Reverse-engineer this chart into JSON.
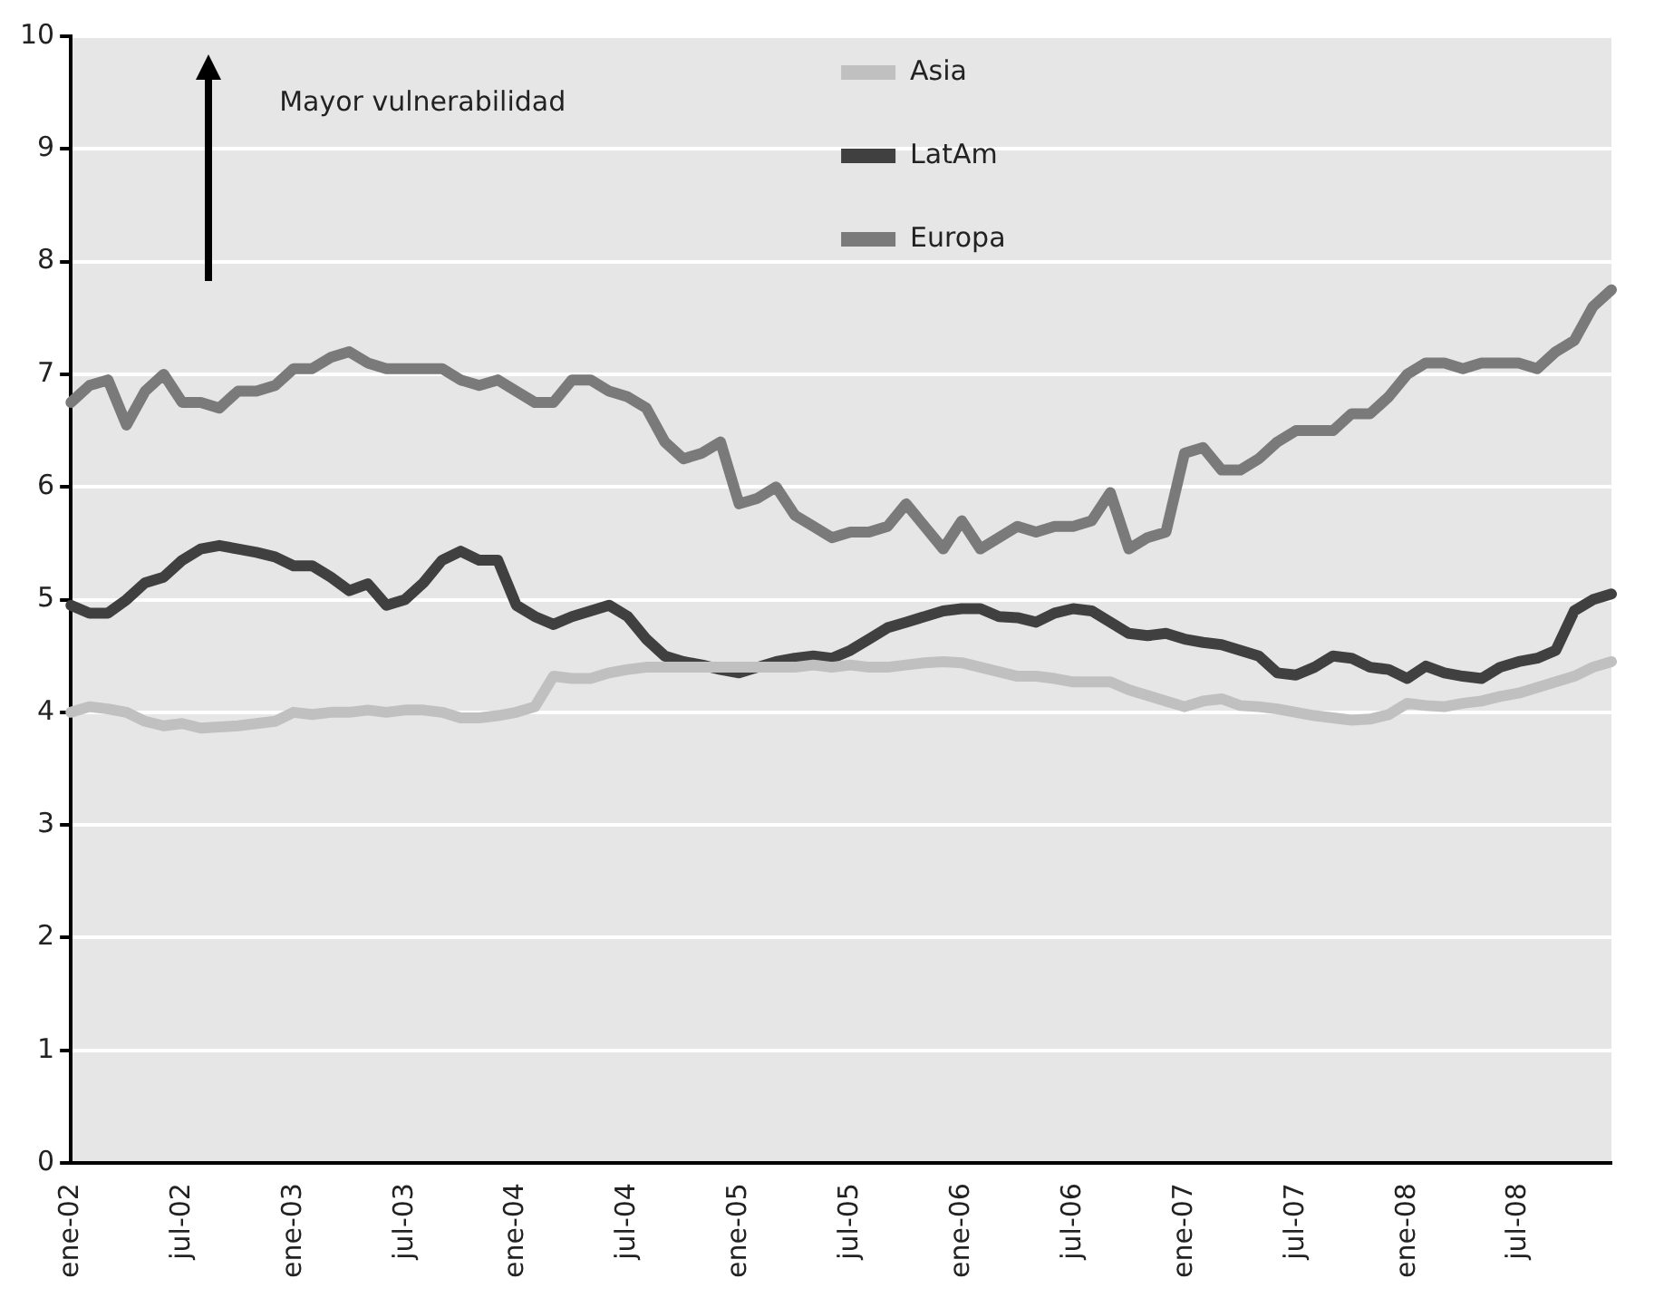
{
  "chart_data": {
    "type": "line",
    "categories": [
      "ene-02",
      null,
      null,
      null,
      null,
      null,
      "jul-02",
      null,
      null,
      null,
      null,
      null,
      "ene-03",
      null,
      null,
      null,
      null,
      null,
      "jul-03",
      null,
      null,
      null,
      null,
      null,
      "ene-04",
      null,
      null,
      null,
      null,
      null,
      "jul-04",
      null,
      null,
      null,
      null,
      null,
      "ene-05",
      null,
      null,
      null,
      null,
      null,
      "jul-05",
      null,
      null,
      null,
      null,
      null,
      "ene-06",
      null,
      null,
      null,
      null,
      null,
      "jul-06",
      null,
      null,
      null,
      null,
      null,
      "ene-07",
      null,
      null,
      null,
      null,
      null,
      "jul-07",
      null,
      null,
      null,
      null,
      null,
      "ene-08",
      null,
      null,
      null,
      null,
      null,
      "jul-08",
      null,
      null,
      null,
      null,
      null
    ],
    "series": [
      {
        "name": "Asia",
        "color": "#c0c0c0",
        "values": [
          4.0,
          4.05,
          4.03,
          4.0,
          3.92,
          3.88,
          3.9,
          3.86,
          3.87,
          3.88,
          3.9,
          3.92,
          4.0,
          3.98,
          4.0,
          4.0,
          4.02,
          4.0,
          4.02,
          4.02,
          4.0,
          3.95,
          3.95,
          3.97,
          4.0,
          4.05,
          4.32,
          4.3,
          4.3,
          4.35,
          4.38,
          4.4,
          4.4,
          4.4,
          4.4,
          4.4,
          4.4,
          4.4,
          4.4,
          4.4,
          4.42,
          4.4,
          4.42,
          4.4,
          4.4,
          4.42,
          4.44,
          4.45,
          4.44,
          4.4,
          4.36,
          4.32,
          4.32,
          4.3,
          4.27,
          4.27,
          4.27,
          4.2,
          4.15,
          4.1,
          4.05,
          4.1,
          4.12,
          4.06,
          4.05,
          4.03,
          4.0,
          3.97,
          3.95,
          3.93,
          3.94,
          3.98,
          4.08,
          4.06,
          4.05,
          4.08,
          4.1,
          4.14,
          4.17,
          4.22,
          4.27,
          4.32,
          4.4,
          4.45
        ]
      },
      {
        "name": "LatAm",
        "color": "#404040",
        "values": [
          4.95,
          4.88,
          4.88,
          5.0,
          5.15,
          5.2,
          5.35,
          5.45,
          5.48,
          5.45,
          5.42,
          5.38,
          5.3,
          5.3,
          5.2,
          5.08,
          5.14,
          4.95,
          5.0,
          5.15,
          5.35,
          5.43,
          5.35,
          5.35,
          4.95,
          4.85,
          4.78,
          4.85,
          4.9,
          4.95,
          4.85,
          4.65,
          4.5,
          4.45,
          4.42,
          4.38,
          4.35,
          4.4,
          4.45,
          4.48,
          4.5,
          4.48,
          4.55,
          4.65,
          4.75,
          4.8,
          4.85,
          4.9,
          4.92,
          4.92,
          4.85,
          4.84,
          4.8,
          4.88,
          4.92,
          4.9,
          4.8,
          4.7,
          4.68,
          4.7,
          4.65,
          4.62,
          4.6,
          4.55,
          4.5,
          4.35,
          4.33,
          4.4,
          4.5,
          4.48,
          4.4,
          4.38,
          4.3,
          4.41,
          4.35,
          4.32,
          4.3,
          4.4,
          4.45,
          4.48,
          4.55,
          4.9,
          5.0,
          5.05
        ]
      },
      {
        "name": "Europa",
        "color": "#7a7a7a",
        "values": [
          6.75,
          6.9,
          6.95,
          6.55,
          6.85,
          7.0,
          6.75,
          6.75,
          6.7,
          6.85,
          6.85,
          6.9,
          7.05,
          7.05,
          7.15,
          7.2,
          7.1,
          7.05,
          7.05,
          7.05,
          7.05,
          6.95,
          6.9,
          6.95,
          6.85,
          6.75,
          6.75,
          6.95,
          6.95,
          6.85,
          6.8,
          6.7,
          6.4,
          6.25,
          6.3,
          6.4,
          5.85,
          5.9,
          6.0,
          5.75,
          5.65,
          5.55,
          5.6,
          5.6,
          5.65,
          5.85,
          5.65,
          5.45,
          5.7,
          5.45,
          5.55,
          5.65,
          5.6,
          5.65,
          5.65,
          5.7,
          5.95,
          5.45,
          5.55,
          5.6,
          6.3,
          6.35,
          6.15,
          6.15,
          6.25,
          6.4,
          6.5,
          6.5,
          6.5,
          6.65,
          6.65,
          6.8,
          7.0,
          7.1,
          7.1,
          7.05,
          7.1,
          7.1,
          7.1,
          7.05,
          7.2,
          7.3,
          7.6,
          7.75
        ]
      }
    ],
    "ylim": [
      0,
      10
    ],
    "yticks": [
      0,
      1,
      2,
      3,
      4,
      5,
      6,
      7,
      8,
      9,
      10
    ],
    "grid": "y",
    "legend": "top",
    "annotations": [
      "Mayor vulnerabilidad"
    ]
  }
}
